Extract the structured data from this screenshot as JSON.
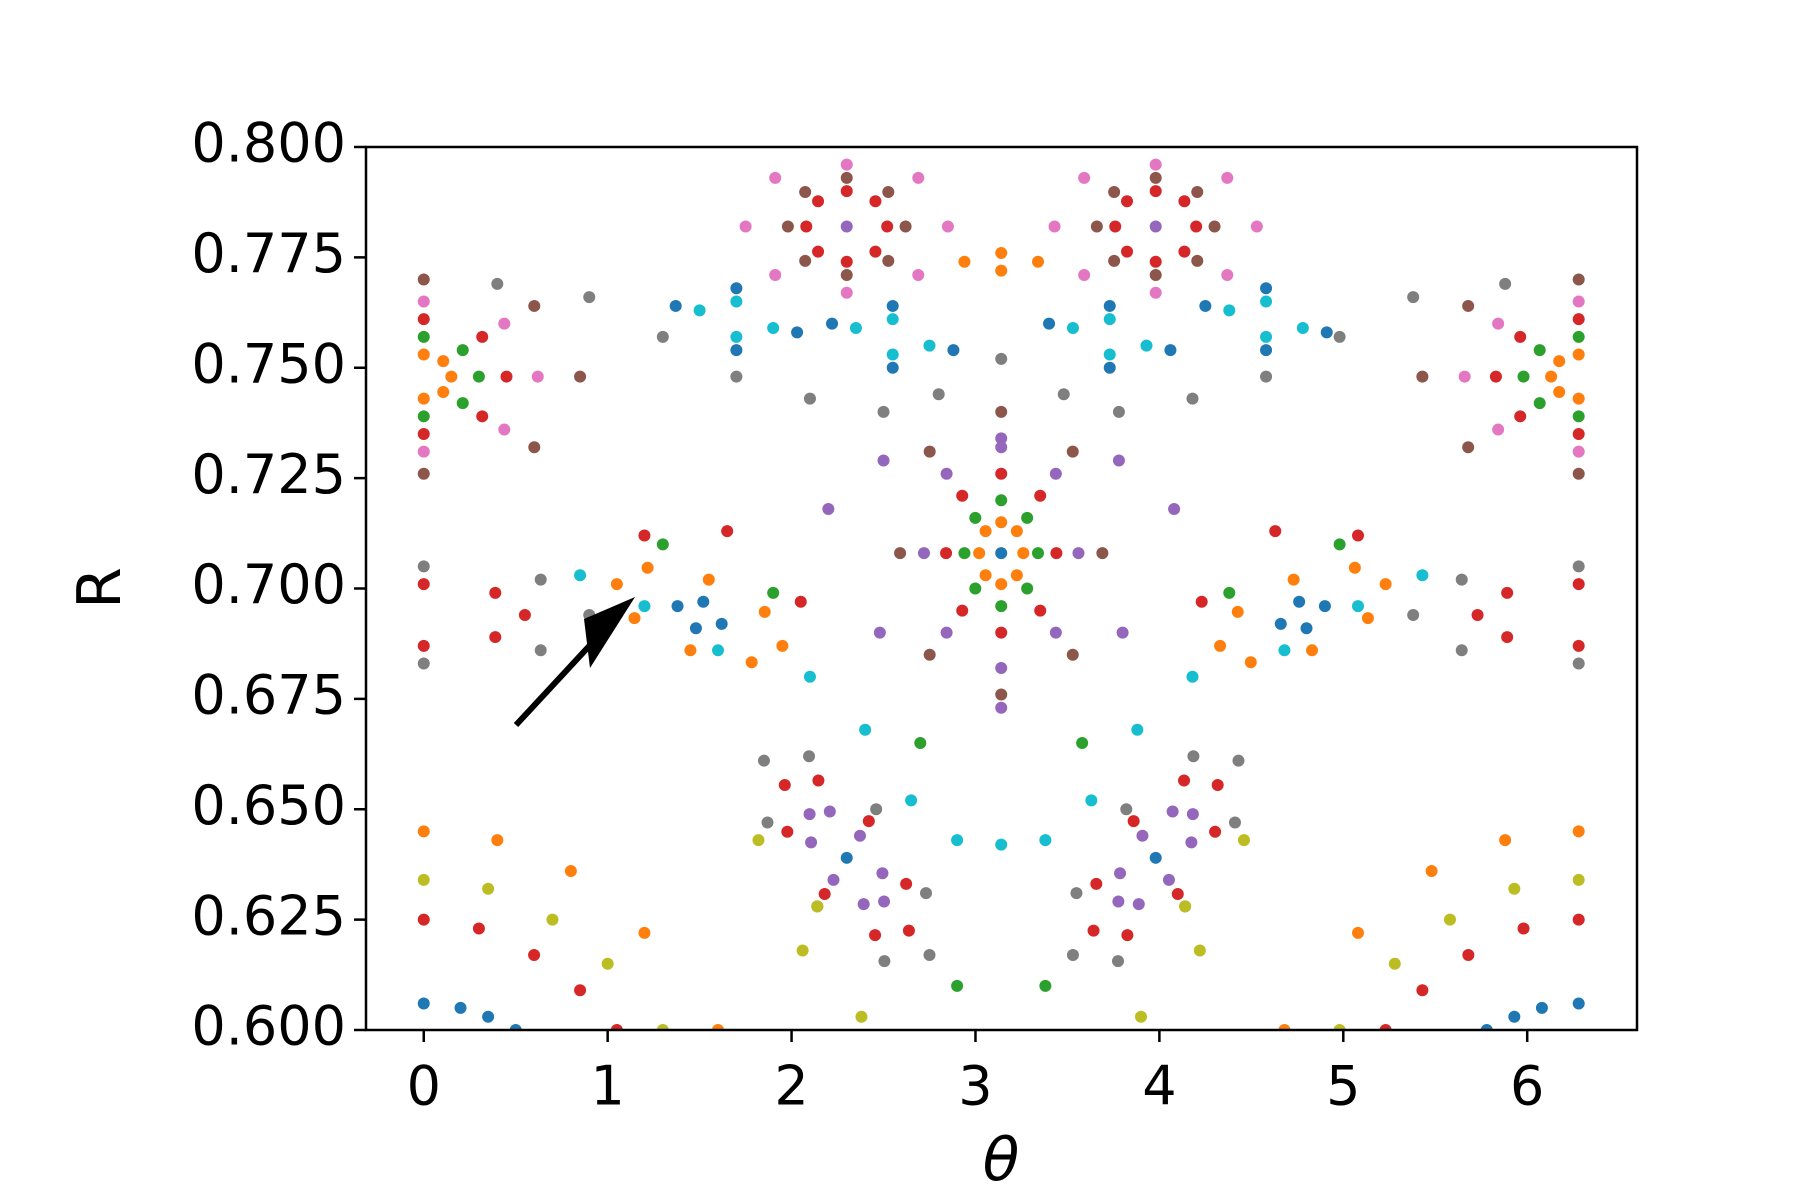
{
  "chart_data": {
    "type": "scatter",
    "xlabel": "θ",
    "ylabel": "R",
    "xlim": [
      -0.314,
      6.597
    ],
    "ylim": [
      0.6,
      0.8
    ],
    "xticks": [
      0,
      1,
      2,
      3,
      4,
      5,
      6
    ],
    "yticks": [
      {
        "value": 0.6,
        "label": "0.600"
      },
      0.625,
      {
        "value": 0.65,
        "label": "0.650"
      },
      0.675,
      {
        "value": 0.7,
        "label": "0.700"
      },
      0.725,
      {
        "value": 0.75,
        "label": "0.750"
      },
      0.775,
      {
        "value": 0.8,
        "label": "0.800"
      }
    ],
    "grid": false,
    "series": [
      {
        "color": "#1f77b4",
        "x": [
          3.14,
          2.3,
          3.98
        ],
        "y": [
          0.708,
          0.639,
          0.639
        ]
      },
      {
        "color": "#ff7f0e",
        "x": [
          3.26,
          3.225,
          3.14,
          3.055,
          3.02,
          3.055,
          3.14,
          3.225
        ],
        "y": [
          0.708,
          0.713,
          0.715,
          0.713,
          0.708,
          0.703,
          0.701,
          0.703
        ]
      },
      {
        "color": "#2ca02c",
        "x": [
          3.34,
          3.281,
          3.14,
          2.999,
          2.94,
          2.999,
          3.14,
          3.281
        ],
        "y": [
          0.708,
          0.716,
          0.72,
          0.716,
          0.708,
          0.7,
          0.696,
          0.7
        ]
      },
      {
        "color": "#d62728",
        "x": [
          3.44,
          3.352,
          3.14,
          2.928,
          2.84,
          2.928,
          3.14,
          3.352
        ],
        "y": [
          0.708,
          0.721,
          0.726,
          0.721,
          0.708,
          0.695,
          0.69,
          0.695
        ]
      },
      {
        "color": "#9467bd",
        "x": [
          3.56,
          3.437,
          3.14,
          2.843,
          2.72,
          2.843,
          3.14,
          3.437
        ],
        "y": [
          0.708,
          0.726,
          0.734,
          0.726,
          0.708,
          0.69,
          0.682,
          0.69
        ]
      },
      {
        "color": "#8c564b",
        "x": [
          3.69,
          3.529,
          3.14,
          2.751,
          2.59,
          2.751,
          3.14,
          3.529
        ],
        "y": [
          0.708,
          0.731,
          0.74,
          0.731,
          0.708,
          0.685,
          0.676,
          0.685
        ]
      },
      {
        "color": "#9467bd",
        "x": [
          2.2,
          2.5,
          3.14,
          3.78,
          4.08,
          3.8,
          3.14,
          2.48
        ],
        "y": [
          0.718,
          0.729,
          0.732,
          0.729,
          0.718,
          0.69,
          0.673,
          0.69
        ]
      },
      {
        "color": "#ff7f0e",
        "x": [
          0,
          0.106,
          0.15,
          0.106,
          0,
          6.28,
          6.174,
          6.13,
          6.174,
          6.28
        ],
        "y": [
          0.753,
          0.7515,
          0.748,
          0.7445,
          0.743,
          0.753,
          0.7515,
          0.748,
          0.7445,
          0.743
        ]
      },
      {
        "color": "#2ca02c",
        "x": [
          0,
          0.212,
          0.3,
          0.212,
          0,
          6.28,
          6.068,
          5.98,
          6.068,
          6.28
        ],
        "y": [
          0.757,
          0.754,
          0.748,
          0.742,
          0.739,
          0.757,
          0.754,
          0.748,
          0.742,
          0.739
        ]
      },
      {
        "color": "#d62728",
        "x": [
          0,
          0.318,
          0.45,
          0.318,
          0,
          6.28,
          5.962,
          5.83,
          5.962,
          6.28
        ],
        "y": [
          0.761,
          0.757,
          0.748,
          0.739,
          0.735,
          0.761,
          0.757,
          0.748,
          0.739,
          0.735
        ]
      },
      {
        "color": "#e377c2",
        "x": [
          0,
          0.438,
          0.62,
          0.438,
          0,
          6.28,
          5.842,
          5.66,
          5.842,
          6.28
        ],
        "y": [
          0.765,
          0.76,
          0.748,
          0.736,
          0.731,
          0.765,
          0.76,
          0.748,
          0.736,
          0.731
        ]
      },
      {
        "color": "#8c564b",
        "x": [
          0,
          0.601,
          0.85,
          0.601,
          0,
          6.28,
          5.679,
          5.43,
          5.679,
          6.28
        ],
        "y": [
          0.77,
          0.764,
          0.748,
          0.732,
          0.726,
          0.77,
          0.764,
          0.748,
          0.732,
          0.726
        ]
      },
      {
        "color": "#d62728",
        "x": [
          0,
          0.389,
          0.55,
          0.389,
          0,
          6.28,
          5.891,
          5.73,
          5.891,
          6.28
        ],
        "y": [
          0.701,
          0.699,
          0.694,
          0.689,
          0.687,
          0.701,
          0.699,
          0.694,
          0.689,
          0.687
        ]
      },
      {
        "color": "#7f7f7f",
        "x": [
          0,
          0.636,
          0.9,
          0.636,
          0,
          6.28,
          5.644,
          5.38,
          5.644,
          6.28
        ],
        "y": [
          0.705,
          0.702,
          0.694,
          0.686,
          0.683,
          0.705,
          0.702,
          0.694,
          0.686,
          0.683
        ]
      },
      {
        "color": "#ff7f0e",
        "x": [
          0,
          0.4,
          0.8,
          1.2,
          1.6,
          4.68,
          5.08,
          5.48,
          5.88,
          6.28
        ],
        "y": [
          0.645,
          0.643,
          0.636,
          0.622,
          0.6,
          0.6,
          0.622,
          0.636,
          0.643,
          0.645
        ]
      },
      {
        "color": "#bcbd22",
        "x": [
          0,
          0.35,
          0.7,
          1.0,
          1.3,
          4.98,
          5.28,
          5.58,
          5.93,
          6.28
        ],
        "y": [
          0.634,
          0.632,
          0.625,
          0.615,
          0.6,
          0.6,
          0.615,
          0.625,
          0.632,
          0.634
        ]
      },
      {
        "color": "#d62728",
        "x": [
          0,
          0.3,
          0.6,
          0.85,
          1.05,
          5.23,
          5.43,
          5.68,
          5.98,
          6.28
        ],
        "y": [
          0.625,
          0.623,
          0.617,
          0.609,
          0.6,
          0.6,
          0.609,
          0.617,
          0.623,
          0.625
        ]
      },
      {
        "color": "#1f77b4",
        "x": [
          0,
          0.2,
          0.35,
          0.5,
          5.78,
          5.93,
          6.08,
          6.28
        ],
        "y": [
          0.606,
          0.605,
          0.603,
          0.6,
          0.6,
          0.603,
          0.605,
          0.606
        ]
      },
      {
        "color": "#7f7f7f",
        "x": [
          2.75,
          2.731,
          2.46,
          2.095,
          1.85,
          1.869,
          2.14,
          2.505,
          3.53,
          3.549,
          3.82,
          4.185,
          4.43,
          4.411,
          4.14,
          3.775
        ],
        "y": [
          0.617,
          0.631,
          0.65,
          0.662,
          0.661,
          0.647,
          0.628,
          0.6156,
          0.617,
          0.631,
          0.65,
          0.662,
          0.661,
          0.647,
          0.628,
          0.6156
        ]
      },
      {
        "color": "#d62728",
        "x": [
          2.638,
          2.623,
          2.42,
          2.146,
          1.963,
          1.977,
          2.18,
          2.454,
          3.642,
          3.657,
          3.86,
          4.134,
          4.317,
          4.303,
          4.1,
          3.826
        ],
        "y": [
          0.6225,
          0.6331,
          0.6473,
          0.6565,
          0.6555,
          0.6449,
          0.6308,
          0.6215,
          0.6225,
          0.6331,
          0.6473,
          0.6565,
          0.6555,
          0.6449,
          0.6308,
          0.6215
        ]
      },
      {
        "color": "#9467bd",
        "x": [
          2.503,
          2.494,
          2.372,
          2.208,
          2.098,
          2.106,
          2.228,
          2.392,
          3.777,
          3.786,
          3.908,
          4.072,
          4.182,
          4.174,
          4.052,
          3.888
        ],
        "y": [
          0.6291,
          0.6355,
          0.644,
          0.6495,
          0.6489,
          0.6425,
          0.634,
          0.6285,
          0.6291,
          0.6355,
          0.644,
          0.6495,
          0.6489,
          0.6425,
          0.634,
          0.6285
        ]
      },
      {
        "color": "#17becf",
        "x": [
          0.85,
          1.2,
          1.6,
          2.1,
          2.4,
          2.65,
          2.9,
          3.14,
          3.38,
          3.63,
          3.88,
          4.18,
          4.68,
          5.08,
          5.43
        ],
        "y": [
          0.703,
          0.696,
          0.686,
          0.68,
          0.668,
          0.652,
          0.643,
          0.642,
          0.643,
          0.652,
          0.668,
          0.68,
          0.686,
          0.696,
          0.703
        ]
      },
      {
        "color": "#ff7f0e",
        "x": [
          1.95,
          1.854,
          1.55,
          1.217,
          1.05,
          1.146,
          1.45,
          1.783,
          4.33,
          4.426,
          4.73,
          5.063,
          5.23,
          5.134,
          4.83,
          4.497
        ],
        "y": [
          0.687,
          0.6947,
          0.702,
          0.7047,
          0.701,
          0.6933,
          0.686,
          0.6833,
          0.687,
          0.6947,
          0.702,
          0.7047,
          0.701,
          0.6933,
          0.686,
          0.6833
        ]
      },
      {
        "color": "#1f77b4",
        "x": [
          1.62,
          1.52,
          1.38,
          1.48,
          4.66,
          4.76,
          4.9,
          4.8
        ],
        "y": [
          0.692,
          0.697,
          0.696,
          0.691,
          0.692,
          0.697,
          0.696,
          0.691
        ]
      },
      {
        "color": "#9467bd",
        "x": [
          2.3,
          3.98
        ],
        "y": [
          0.782,
          0.782
        ]
      },
      {
        "color": "#d62728",
        "x": [
          2.52,
          2.456,
          2.3,
          2.144,
          2.08,
          2.144,
          2.3,
          2.456,
          3.76,
          3.824,
          3.98,
          4.136,
          4.2,
          4.136,
          3.98,
          3.824
        ],
        "y": [
          0.782,
          0.7877,
          0.79,
          0.7877,
          0.782,
          0.7763,
          0.774,
          0.7763,
          0.782,
          0.7877,
          0.79,
          0.7877,
          0.782,
          0.7763,
          0.774,
          0.7763
        ]
      },
      {
        "color": "#8c564b",
        "x": [
          2.62,
          2.526,
          2.3,
          2.074,
          1.98,
          2.074,
          2.3,
          2.526,
          3.66,
          3.754,
          3.98,
          4.206,
          4.3,
          4.206,
          3.98,
          3.754
        ],
        "y": [
          0.782,
          0.7898,
          0.793,
          0.7898,
          0.782,
          0.7742,
          0.771,
          0.7742,
          0.782,
          0.7898,
          0.793,
          0.7898,
          0.782,
          0.7742,
          0.771,
          0.7742
        ]
      },
      {
        "color": "#e377c2",
        "x": [
          2.85,
          2.689,
          2.3,
          1.911,
          1.75,
          1.911,
          2.3,
          2.689,
          3.43,
          3.591,
          3.98,
          4.369,
          4.53,
          4.369,
          3.98,
          3.591
        ],
        "y": [
          0.782,
          0.793,
          0.796,
          0.793,
          0.782,
          0.771,
          0.767,
          0.771,
          0.782,
          0.793,
          0.796,
          0.793,
          0.782,
          0.771,
          0.767,
          0.771
        ]
      },
      {
        "color": "#17becf",
        "x": [
          1.9,
          1.7,
          1.5,
          1.7,
          2.75,
          2.55,
          2.35,
          2.55,
          3.93,
          3.73,
          3.53,
          3.73,
          4.78,
          4.58,
          4.38,
          4.58
        ],
        "y": [
          0.759,
          0.765,
          0.763,
          0.757,
          0.755,
          0.761,
          0.759,
          0.753,
          0.755,
          0.761,
          0.759,
          0.753,
          0.759,
          0.765,
          0.763,
          0.757
        ]
      },
      {
        "color": "#1f77b4",
        "x": [
          2.03,
          1.7,
          1.37,
          1.7,
          2.88,
          2.55,
          2.22,
          2.55,
          4.06,
          3.73,
          3.4,
          3.73,
          4.91,
          4.58,
          4.25,
          4.58
        ],
        "y": [
          0.758,
          0.768,
          0.764,
          0.754,
          0.754,
          0.764,
          0.76,
          0.75,
          0.754,
          0.764,
          0.76,
          0.75,
          0.758,
          0.768,
          0.764,
          0.754
        ]
      },
      {
        "color": "#7f7f7f",
        "x": [
          0.4,
          0.9,
          1.3,
          1.7,
          2.1,
          2.5,
          2.8,
          3.14,
          3.48,
          3.78,
          4.18,
          4.58,
          4.98,
          5.38,
          5.88
        ],
        "y": [
          0.769,
          0.766,
          0.757,
          0.748,
          0.743,
          0.74,
          0.744,
          0.752,
          0.744,
          0.74,
          0.743,
          0.748,
          0.757,
          0.766,
          0.769
        ]
      },
      {
        "color": "#ff7f0e",
        "x": [
          3.34,
          3.14,
          2.94,
          3.14
        ],
        "y": [
          0.774,
          0.776,
          0.774,
          0.772
        ]
      },
      {
        "color": "#bcbd22",
        "x": [
          2.38,
          2.14,
          1.82,
          2.06,
          3.9,
          4.14,
          4.46,
          4.22
        ],
        "y": [
          0.603,
          0.628,
          0.643,
          0.618,
          0.603,
          0.628,
          0.643,
          0.618
        ]
      },
      {
        "color": "#d62728",
        "x": [
          1.2,
          1.65,
          4.63,
          5.08,
          2.05,
          4.23
        ],
        "y": [
          0.712,
          0.713,
          0.713,
          0.712,
          0.697,
          0.697
        ]
      },
      {
        "color": "#2ca02c",
        "x": [
          1.3,
          1.9,
          2.7,
          3.58,
          4.38,
          4.98,
          2.9,
          3.38
        ],
        "y": [
          0.71,
          0.699,
          0.665,
          0.665,
          0.699,
          0.71,
          0.61,
          0.61
        ]
      }
    ]
  }
}
